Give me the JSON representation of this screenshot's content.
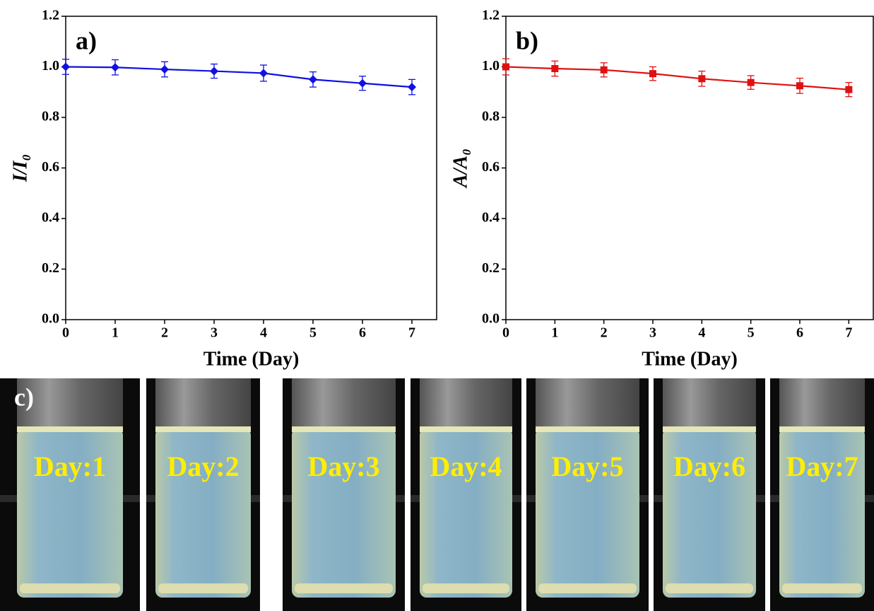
{
  "chart_data": [
    {
      "type": "line",
      "annotation": "a)",
      "xlabel": "Time (Day)",
      "ylabel": "I/I₀",
      "x": [
        0,
        1,
        2,
        3,
        4,
        5,
        6,
        7
      ],
      "series": [
        {
          "color": "#1010e0",
          "marker": "diamond",
          "values": [
            1.0,
            0.998,
            0.99,
            0.983,
            0.975,
            0.95,
            0.935,
            0.92
          ],
          "errors": [
            0.03,
            0.03,
            0.03,
            0.028,
            0.032,
            0.03,
            0.028,
            0.03
          ]
        }
      ],
      "xlim": [
        0,
        7.5
      ],
      "xticks": [
        0,
        1,
        2,
        3,
        4,
        5,
        6,
        7
      ],
      "ylim": [
        0,
        1.2
      ],
      "yticks": [
        {
          "value": 0,
          "label": "0.0"
        },
        0.2,
        0.4,
        0.6,
        0.8,
        {
          "value": 1,
          "label": "1.0"
        },
        1.2
      ]
    },
    {
      "type": "line",
      "annotation": "b)",
      "xlabel": "Time (Day)",
      "ylabel": "A/A₀",
      "x": [
        0,
        1,
        2,
        3,
        4,
        5,
        6,
        7
      ],
      "series": [
        {
          "color": "#e01010",
          "marker": "square",
          "values": [
            1.0,
            0.993,
            0.988,
            0.973,
            0.953,
            0.938,
            0.925,
            0.91
          ],
          "errors": [
            0.032,
            0.03,
            0.028,
            0.027,
            0.03,
            0.027,
            0.03,
            0.028
          ]
        }
      ],
      "xlim": [
        0,
        7.5
      ],
      "xticks": [
        0,
        1,
        2,
        3,
        4,
        5,
        6,
        7
      ],
      "ylim": [
        0,
        1.2
      ],
      "yticks": [
        {
          "value": 0,
          "label": "0.0"
        },
        0.2,
        0.4,
        0.6,
        0.8,
        {
          "value": 1,
          "label": "1.0"
        },
        1.2
      ]
    }
  ],
  "photos": {
    "label": "c)",
    "captions": [
      "Day:1",
      "Day:2",
      "Day:3",
      "Day:4",
      "Day:5",
      "Day:6",
      "Day:7"
    ]
  }
}
